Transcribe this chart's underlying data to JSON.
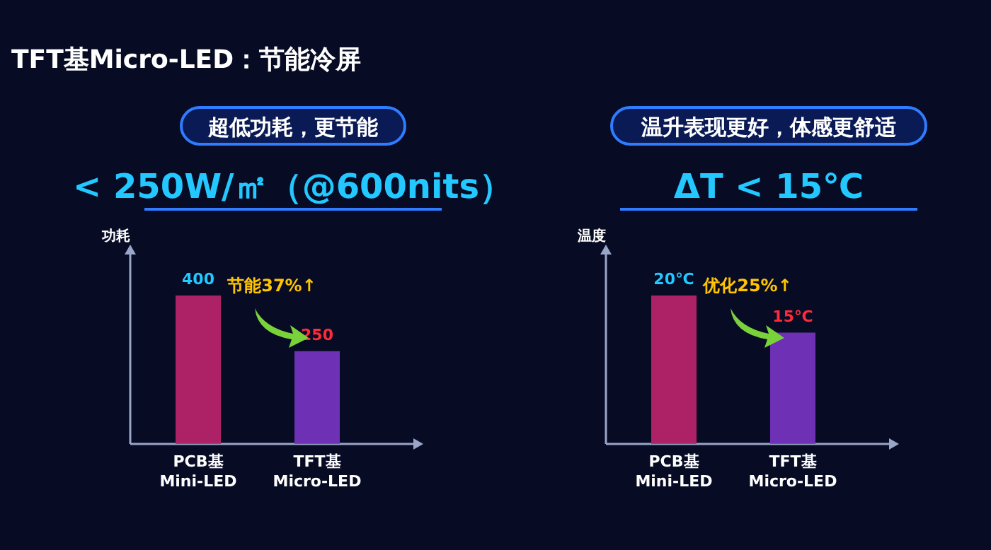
{
  "chart_data": [
    {
      "type": "bar",
      "title": "超低功耗，更节能",
      "subtitle": "< 250W/㎡（@600nits）",
      "ylabel": "功耗",
      "categories": [
        "PCB基\nMini-LED",
        "TFT基\nMicro-LED"
      ],
      "values": [
        400,
        250
      ],
      "colors": [
        "#c0246e",
        "#7a34c4"
      ],
      "data_labels": true,
      "tick_labels": "x",
      "annotations": [
        "TFT基Micro-LED：节能冷屏",
        "节能37%↑"
      ]
    },
    {
      "type": "bar",
      "title": "温升表现更好，体感更舒适",
      "subtitle": "ΔT < 15℃",
      "ylabel": "温度",
      "categories": [
        "PCB基\nMini-LED",
        "TFT基\nMicro-LED"
      ],
      "values": [
        20,
        15
      ],
      "value_labels": [
        "20℃",
        "15℃"
      ],
      "colors": [
        "#c0246e",
        "#7a34c4"
      ],
      "tick_labels": "x",
      "annotations": [
        "优化25%↑"
      ]
    }
  ]
}
